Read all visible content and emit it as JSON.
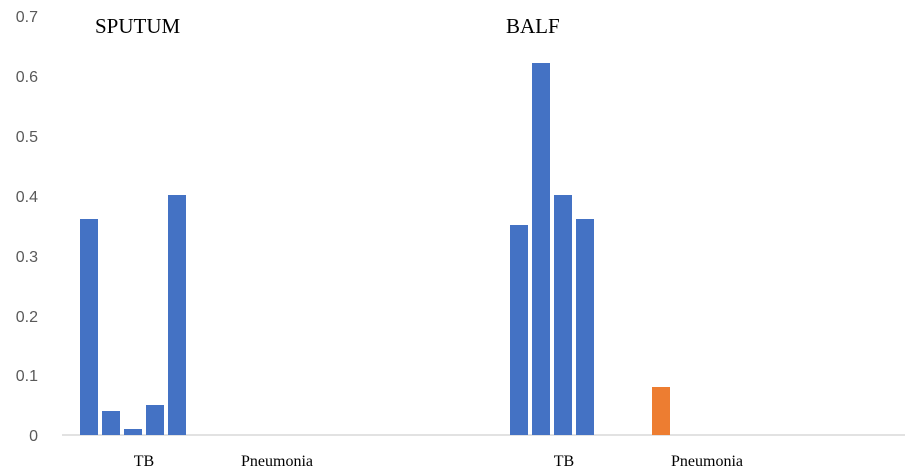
{
  "chart_data": {
    "type": "bar",
    "title": "",
    "xlabel": "",
    "ylabel": "",
    "ylim": [
      0,
      0.7
    ],
    "yticks": [
      "0",
      "0.1",
      "0.2",
      "0.3",
      "0.4",
      "0.5",
      "0.6",
      "0.7"
    ],
    "grid": false,
    "legend": "none",
    "colors": {
      "TB": "#4472C4",
      "Pneumonia": "#ED7D31",
      "axis": "#D9D9D9",
      "tick_text": "#595959"
    },
    "groups": [
      {
        "name": "SPUTUM",
        "categories": [
          {
            "label": "TB",
            "values": [
              0.36,
              0.04,
              0.01,
              0.05,
              0.4
            ]
          },
          {
            "label": "Pneumonia",
            "values": []
          }
        ]
      },
      {
        "name": "BALF",
        "categories": [
          {
            "label": "TB",
            "values": [
              0.35,
              0.62,
              0.4,
              0.36
            ]
          },
          {
            "label": "Pneumonia",
            "values": [
              0.08
            ]
          }
        ]
      }
    ]
  }
}
